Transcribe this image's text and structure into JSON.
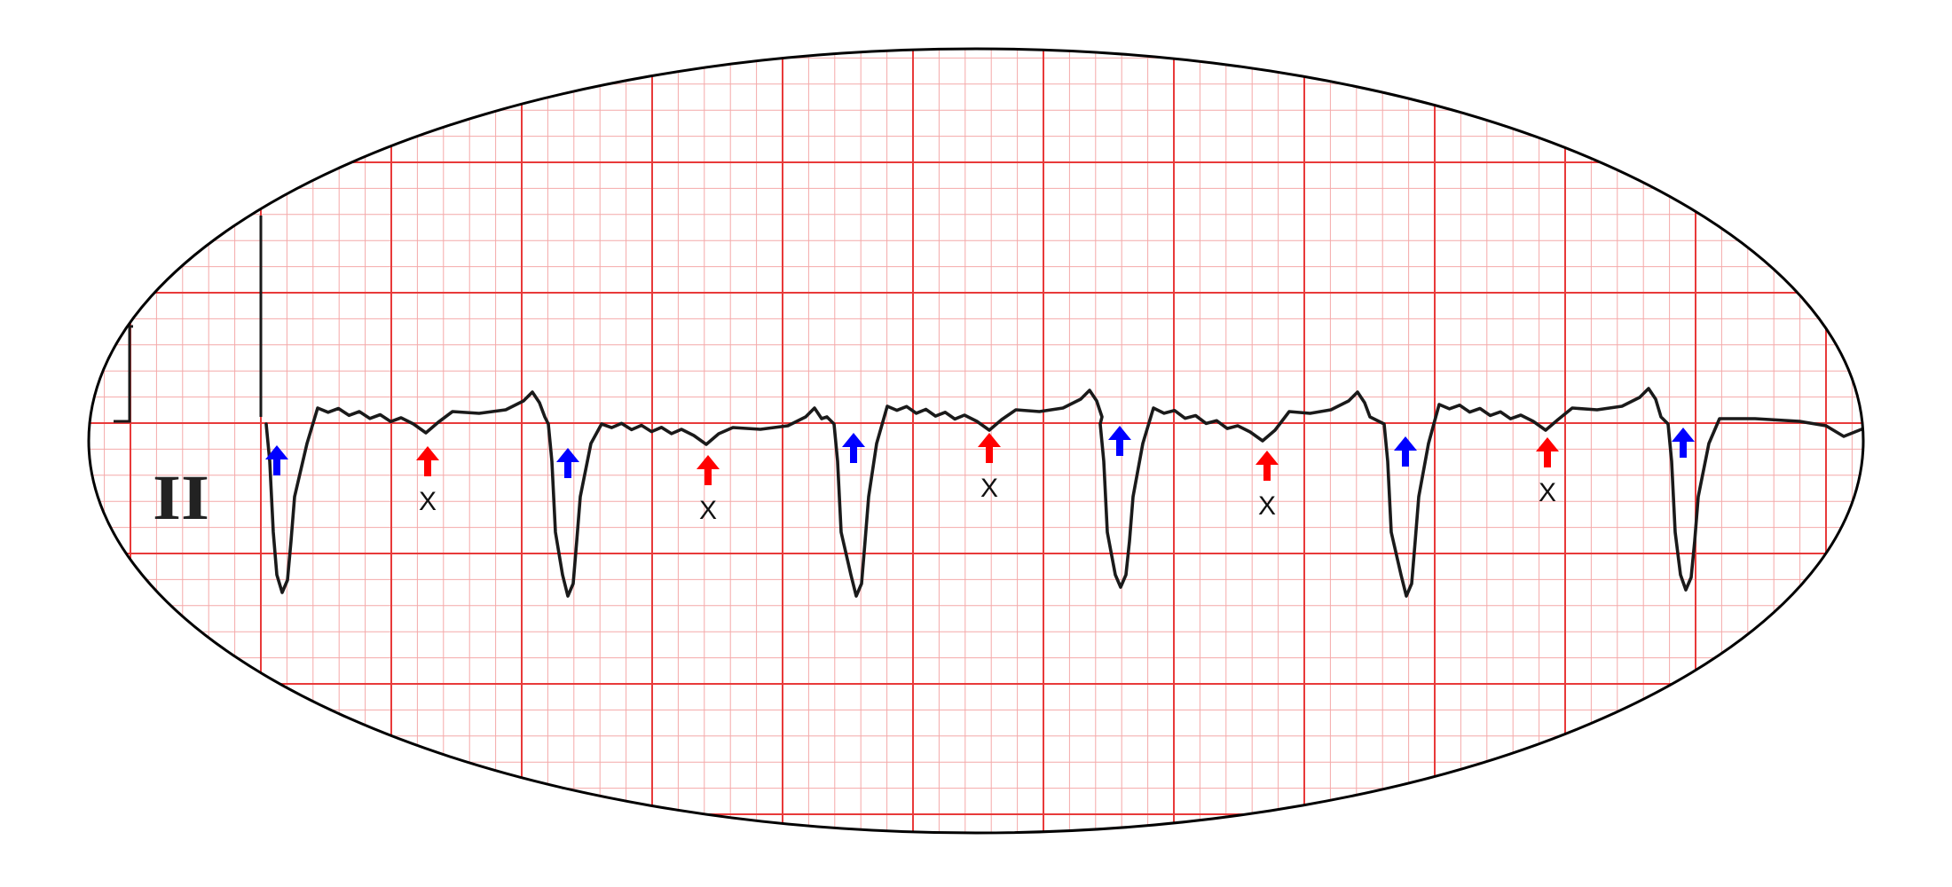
{
  "lead_label": "II",
  "colors": {
    "paper": "#ffffff",
    "grid_minor": "#f4a9a9",
    "grid_major": "#e83a3a",
    "trace": "#1a1a1a",
    "ellipse_border": "#000000",
    "p_wave_arrow": "#ff0000",
    "qrs_arrow": "#0000ff"
  },
  "annotations": {
    "p_wave_marker_text": "X",
    "p_wave_markers": [
      "X",
      "X",
      "X",
      "X",
      "X"
    ],
    "qrs_marker_count": 6,
    "p_wave_marker_count": 5,
    "p_wave_arrow_icon": "red-up-arrow-icon",
    "qrs_arrow_icon": "blue-up-arrow-icon"
  }
}
